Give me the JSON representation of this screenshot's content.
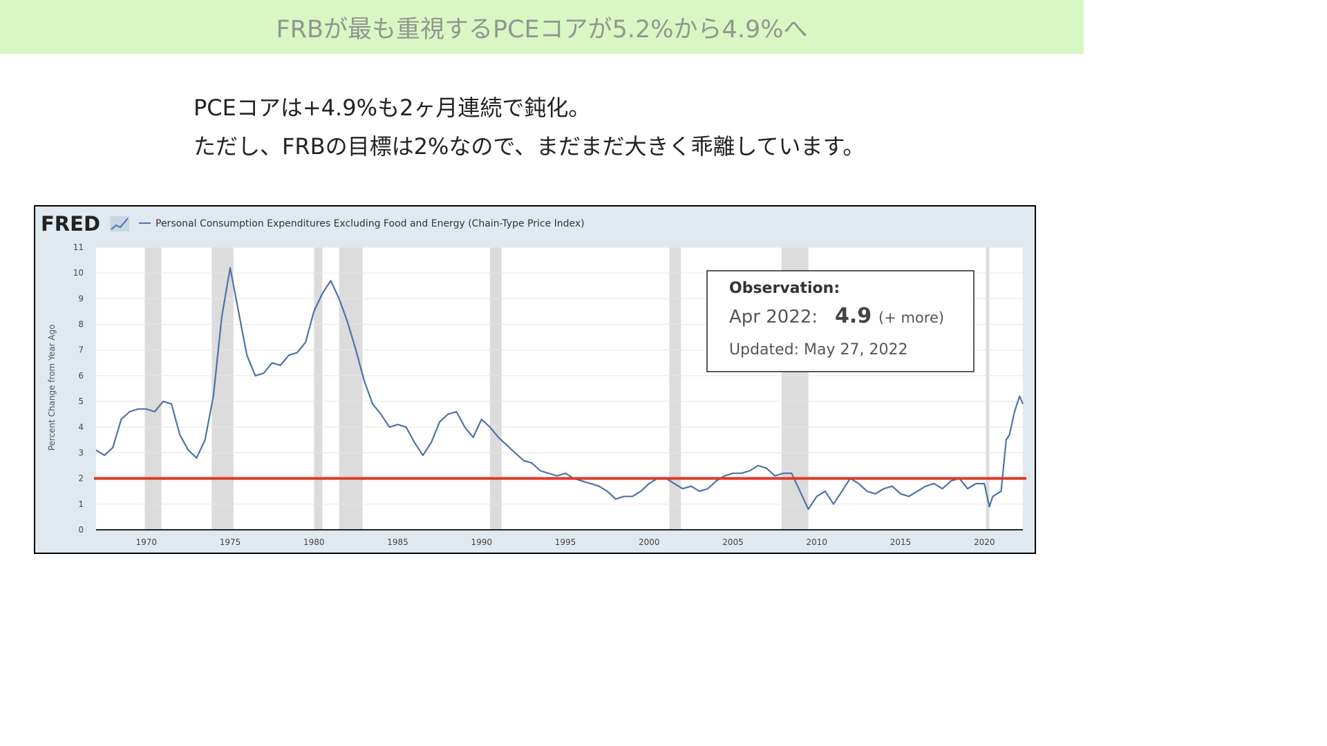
{
  "banner": {
    "title": "FRBが最も重視するPCEコアが5.2%から4.9%へ"
  },
  "message": {
    "line1": "PCEコアは+4.9%も2ヶ月連続で鈍化。",
    "line2": "ただし、FRBの目標は2%なので、まだまだ大きく乖離しています。"
  },
  "fred": {
    "logo": "FRED",
    "logo_icon": "line-graph-icon",
    "observation": {
      "heading": "Observation:",
      "period": "Apr 2022:",
      "value": "4.9",
      "more": "(+ more)",
      "updated": "Updated: May 27, 2022"
    }
  },
  "colors": {
    "line": "#4d72a8",
    "target": "#e0382a",
    "recession": "#dcdcdc",
    "banner": "#d9f7c3"
  },
  "chart_data": {
    "type": "line",
    "title": "",
    "ylabel": "Percent Change from Year Ago",
    "xlabel": "",
    "ylim": [
      0,
      11
    ],
    "xlim": [
      1967.0,
      2022.3
    ],
    "yticks": [
      0,
      1,
      2,
      3,
      4,
      5,
      6,
      7,
      8,
      9,
      10,
      11
    ],
    "xticks": [
      1970,
      1975,
      1980,
      1985,
      1990,
      1995,
      2000,
      2005,
      2010,
      2015,
      2020
    ],
    "grid": true,
    "legend": "top-left",
    "recessions": [
      [
        1969.9,
        1970.9
      ],
      [
        1973.9,
        1975.2
      ],
      [
        1980.0,
        1980.5
      ],
      [
        1981.5,
        1982.9
      ],
      [
        1990.5,
        1991.2
      ],
      [
        2001.2,
        2001.9
      ],
      [
        2007.9,
        2009.5
      ],
      [
        2020.1,
        2020.3
      ]
    ],
    "target_line": 2,
    "series": [
      {
        "name": "Personal Consumption Expenditures Excluding Food and Energy (Chain-Type Price Index)",
        "x": [
          1967.0,
          1967.5,
          1968.0,
          1968.5,
          1969.0,
          1969.5,
          1970.0,
          1970.5,
          1971.0,
          1971.5,
          1972.0,
          1972.5,
          1973.0,
          1973.5,
          1974.0,
          1974.5,
          1975.0,
          1975.5,
          1976.0,
          1976.5,
          1977.0,
          1977.5,
          1978.0,
          1978.5,
          1979.0,
          1979.5,
          1980.0,
          1980.5,
          1981.0,
          1981.5,
          1982.0,
          1982.5,
          1983.0,
          1983.5,
          1984.0,
          1984.5,
          1985.0,
          1985.5,
          1986.0,
          1986.5,
          1987.0,
          1987.5,
          1988.0,
          1988.5,
          1989.0,
          1989.5,
          1990.0,
          1990.5,
          1991.0,
          1991.5,
          1992.0,
          1992.5,
          1993.0,
          1993.5,
          1994.0,
          1994.5,
          1995.0,
          1995.5,
          1996.0,
          1996.5,
          1997.0,
          1997.5,
          1998.0,
          1998.5,
          1999.0,
          1999.5,
          2000.0,
          2000.5,
          2001.0,
          2001.5,
          2002.0,
          2002.5,
          2003.0,
          2003.5,
          2004.0,
          2004.5,
          2005.0,
          2005.5,
          2006.0,
          2006.5,
          2007.0,
          2007.5,
          2008.0,
          2008.5,
          2009.0,
          2009.5,
          2010.0,
          2010.5,
          2011.0,
          2011.5,
          2012.0,
          2012.5,
          2013.0,
          2013.5,
          2014.0,
          2014.5,
          2015.0,
          2015.5,
          2016.0,
          2016.5,
          2017.0,
          2017.5,
          2018.0,
          2018.5,
          2019.0,
          2019.5,
          2020.0,
          2020.3,
          2020.5,
          2021.0,
          2021.3,
          2021.5,
          2021.8,
          2022.1,
          2022.3
        ],
        "values": [
          3.1,
          2.9,
          3.2,
          4.3,
          4.6,
          4.7,
          4.7,
          4.6,
          5.0,
          4.9,
          3.7,
          3.1,
          2.8,
          3.5,
          5.2,
          8.3,
          10.2,
          8.5,
          6.8,
          6.0,
          6.1,
          6.5,
          6.4,
          6.8,
          6.9,
          7.3,
          8.5,
          9.2,
          9.7,
          9.0,
          8.1,
          7.0,
          5.8,
          4.9,
          4.5,
          4.0,
          4.1,
          4.0,
          3.4,
          2.9,
          3.4,
          4.2,
          4.5,
          4.6,
          4.0,
          3.6,
          4.3,
          4.0,
          3.6,
          3.3,
          3.0,
          2.7,
          2.6,
          2.3,
          2.2,
          2.1,
          2.2,
          2.0,
          1.9,
          1.8,
          1.7,
          1.5,
          1.2,
          1.3,
          1.3,
          1.5,
          1.8,
          2.0,
          2.0,
          1.8,
          1.6,
          1.7,
          1.5,
          1.6,
          1.9,
          2.1,
          2.2,
          2.2,
          2.3,
          2.5,
          2.4,
          2.1,
          2.2,
          2.2,
          1.5,
          0.8,
          1.3,
          1.5,
          1.0,
          1.5,
          2.0,
          1.8,
          1.5,
          1.4,
          1.6,
          1.7,
          1.4,
          1.3,
          1.5,
          1.7,
          1.8,
          1.6,
          1.9,
          2.0,
          1.6,
          1.8,
          1.8,
          0.9,
          1.3,
          1.5,
          3.5,
          3.7,
          4.6,
          5.2,
          4.9
        ]
      }
    ]
  }
}
